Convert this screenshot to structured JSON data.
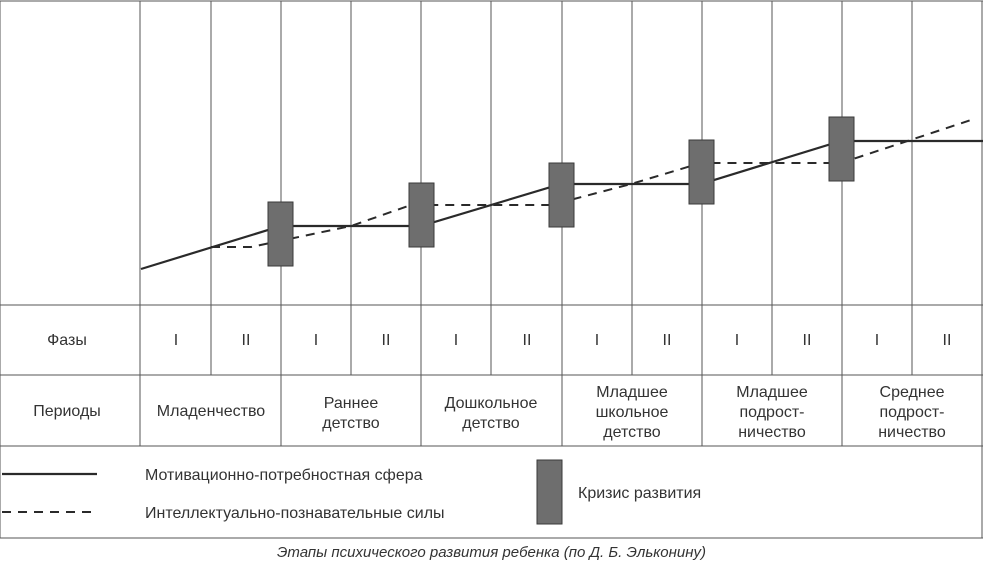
{
  "labels": {
    "phases": "Фазы",
    "periods": "Периоды"
  },
  "phases": [
    "I",
    "II",
    "I",
    "II",
    "I",
    "II",
    "I",
    "II",
    "I",
    "II",
    "I",
    "II"
  ],
  "periods": [
    [
      "Младенчество"
    ],
    [
      "Раннее",
      "детство"
    ],
    [
      "Дошкольное",
      "детство"
    ],
    [
      "Младшее",
      "школьное",
      "детство"
    ],
    [
      "Младшее",
      "подрост-",
      "ничество"
    ],
    [
      "Среднее",
      "подрост-",
      "ничество"
    ]
  ],
  "legend": {
    "motivational": "Мотивационно-потребностная сфера",
    "intellectual": "Интеллектуально-познавательные силы",
    "crisis": "Кризис развития"
  },
  "caption": "Этапы психического развития ребенка (по Д. Б. Эльконину)",
  "colors": {
    "line": "#2a2a2a",
    "grid": "#555555",
    "crisis_box": "#6e6e6e"
  }
}
